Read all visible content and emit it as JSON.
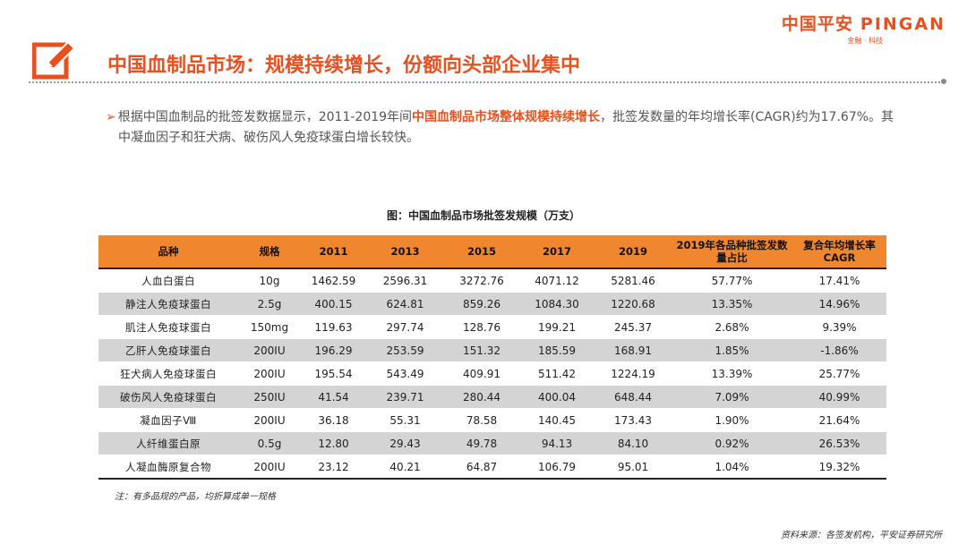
{
  "logo": {
    "cn": "中国平安",
    "en": "PINGAN",
    "sub": "金融 · 科技"
  },
  "colors": {
    "accent": "#e8501f",
    "header_fill": "#f0862e",
    "stripe": "#d4d4d4"
  },
  "header": {
    "icon": "pencil-edit-icon",
    "title": "中国血制品市场：规模持续增长，份额向头部企业集中"
  },
  "bullet": {
    "part1": "根据中国血制品的批签发数据显示，2011-2019年间",
    "highlight": "中国血制品市场整体规模持续增长",
    "part2": "，批签发数量的年均增长率(CAGR)约为17.67%。其中凝血因子和狂犬病、破伤风人免疫球蛋白增长较快。"
  },
  "table": {
    "title": "图：中国血制品市场批签发规模（万支）",
    "headers": [
      "品种",
      "规格",
      "2011",
      "2013",
      "2015",
      "2017",
      "2019",
      "2019年各品种批签发数量占比",
      "复合年均增长率CAGR"
    ],
    "rows": [
      [
        "人血白蛋白",
        "10g",
        "1462.59",
        "2596.31",
        "3272.76",
        "4071.12",
        "5281.46",
        "57.77%",
        "17.41%"
      ],
      [
        "静注人免疫球蛋白",
        "2.5g",
        "400.15",
        "624.81",
        "859.26",
        "1084.30",
        "1220.68",
        "13.35%",
        "14.96%"
      ],
      [
        "肌注人免疫球蛋白",
        "150mg",
        "119.63",
        "297.74",
        "128.76",
        "199.21",
        "245.37",
        "2.68%",
        "9.39%"
      ],
      [
        "乙肝人免疫球蛋白",
        "200IU",
        "196.29",
        "253.59",
        "151.32",
        "185.59",
        "168.91",
        "1.85%",
        "-1.86%"
      ],
      [
        "狂犬病人免疫球蛋白",
        "200IU",
        "195.54",
        "543.49",
        "409.91",
        "511.42",
        "1224.19",
        "13.39%",
        "25.77%"
      ],
      [
        "破伤风人免疫球蛋白",
        "250IU",
        "41.54",
        "239.71",
        "280.44",
        "400.04",
        "648.44",
        "7.09%",
        "40.99%"
      ],
      [
        "凝血因子Ⅷ",
        "200IU",
        "36.18",
        "55.31",
        "78.58",
        "140.45",
        "173.43",
        "1.90%",
        "21.64%"
      ],
      [
        "人纤维蛋白原",
        "0.5g",
        "12.80",
        "29.43",
        "49.78",
        "94.13",
        "84.10",
        "0.92%",
        "26.53%"
      ],
      [
        "人凝血酶原复合物",
        "200IU",
        "23.12",
        "40.21",
        "64.87",
        "106.79",
        "95.01",
        "1.04%",
        "19.32%"
      ]
    ]
  },
  "note": "注：有多品规的产品，均折算成单一规格",
  "source": "资料来源：各签发机构，平安证券研究所"
}
